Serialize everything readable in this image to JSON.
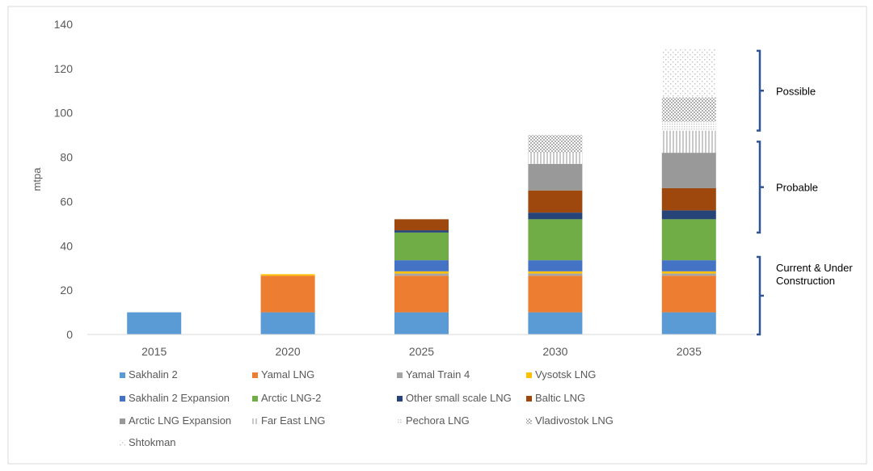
{
  "chart_data": {
    "type": "bar",
    "stacked": true,
    "ylabel": "mtpa",
    "xlabel": "",
    "title": "",
    "ylim": [
      0,
      140
    ],
    "yticks": [
      0,
      20,
      40,
      60,
      80,
      100,
      120,
      140
    ],
    "grid": false,
    "legend_position": "bottom",
    "categories": [
      "2015",
      "2020",
      "2025",
      "2030",
      "2035"
    ],
    "series": [
      {
        "name": "Sakhalin 2",
        "color": "#5b9bd5",
        "pattern": "solid",
        "values": [
          10,
          10,
          10,
          10,
          10
        ]
      },
      {
        "name": "Yamal LNG",
        "color": "#ed7d31",
        "pattern": "solid",
        "values": [
          0,
          16.5,
          16.5,
          16.5,
          16.5
        ]
      },
      {
        "name": "Yamal Train 4",
        "color": "#a5a5a5",
        "pattern": "solid",
        "values": [
          0,
          0,
          1,
          1,
          1
        ]
      },
      {
        "name": "Vysotsk LNG",
        "color": "#ffc000",
        "pattern": "solid",
        "values": [
          0,
          0.7,
          1,
          1,
          1
        ]
      },
      {
        "name": "Sakhalin 2 Expansion",
        "color": "#4472c4",
        "pattern": "solid",
        "values": [
          0,
          0,
          5,
          5,
          5
        ]
      },
      {
        "name": "Arctic LNG-2",
        "color": "#70ad47",
        "pattern": "solid",
        "values": [
          0,
          0,
          12.5,
          18.5,
          18.5
        ]
      },
      {
        "name": "Other small scale LNG",
        "color": "#264478",
        "pattern": "solid",
        "values": [
          0,
          0,
          1,
          3,
          4
        ]
      },
      {
        "name": "Baltic LNG",
        "color": "#9e480e",
        "pattern": "solid",
        "values": [
          0,
          0,
          5,
          10,
          10
        ]
      },
      {
        "name": "Arctic LNG Expansion",
        "color": "#a5a5a5",
        "pattern": "solid-dark",
        "values": [
          0,
          0,
          0,
          12,
          16
        ]
      },
      {
        "name": "Far East LNG",
        "color": "#c9c9c9",
        "pattern": "vlines",
        "values": [
          0,
          0,
          0,
          5,
          10
        ]
      },
      {
        "name": "Pechora LNG",
        "color": "#dcdcdc",
        "pattern": "dots",
        "values": [
          0,
          0,
          0,
          0,
          4
        ]
      },
      {
        "name": "Vladivostok LNG",
        "color": "#bfbfbf",
        "pattern": "checker",
        "values": [
          0,
          0,
          0,
          8,
          11
        ]
      },
      {
        "name": "Shtokman",
        "color": "#d9d9d9",
        "pattern": "sparse",
        "values": [
          0,
          0,
          0,
          0,
          22
        ]
      }
    ],
    "annotations": [
      {
        "text": "Possible",
        "range": [
          92,
          128
        ]
      },
      {
        "text": "Probable",
        "range": [
          46,
          87
        ]
      },
      {
        "text": "Current & Under Construction",
        "range": [
          0,
          35
        ]
      }
    ]
  }
}
